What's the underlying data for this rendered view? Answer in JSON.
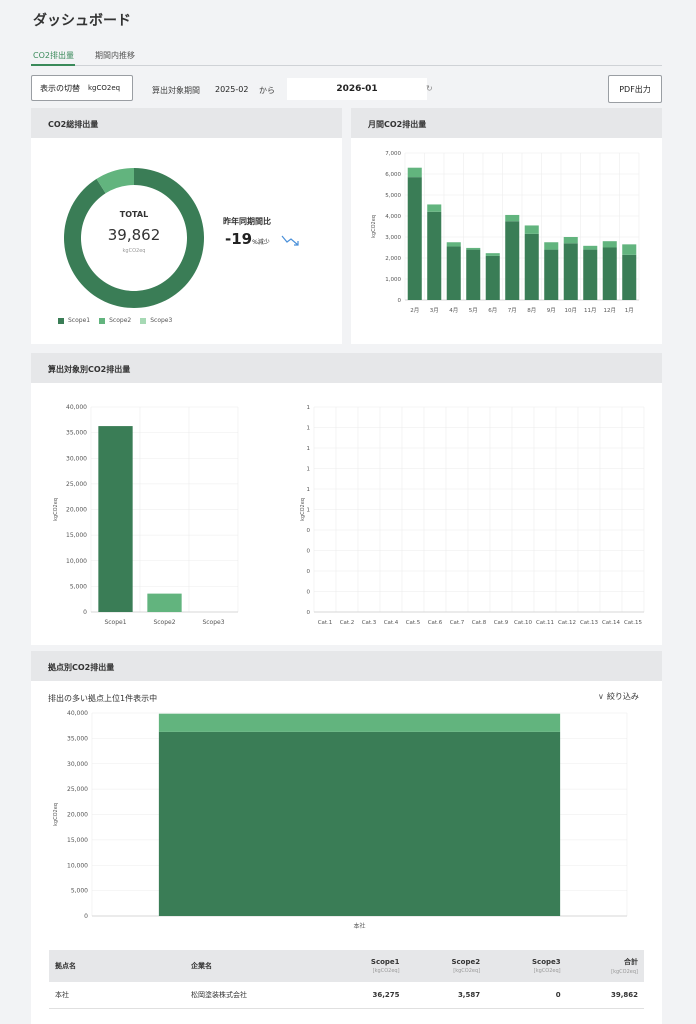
{
  "page_title": "ダッシュボード",
  "tabs": [
    {
      "label": "CO2排出量",
      "active": true
    },
    {
      "label": "期間内推移",
      "active": false
    }
  ],
  "toolbar": {
    "unit_toggle_label": "表示の切替",
    "unit_toggle_value": "kgCO2eq",
    "period_label": "算出対象期間",
    "period_start": "2025-02",
    "period_from": "から",
    "period_end": "2026-01",
    "pdf_label": "PDF出力"
  },
  "total_card": {
    "title": "CO2総排出量",
    "total_label": "TOTAL",
    "total_value": "39,862",
    "total_unit": "kgCO2eq",
    "yoy_label": "昨年同期間比",
    "yoy_value": "-19",
    "yoy_suffix": "%減少",
    "colors": {
      "scope1": "#3a7d56",
      "scope2": "#62b47e",
      "scope3": "#a6d9b4"
    },
    "legend": [
      "Scope1",
      "Scope2",
      "Scope3"
    ]
  },
  "monthly_card": {
    "title": "月間CO2排出量"
  },
  "target_card": {
    "title": "算出対象別CO2排出量"
  },
  "site_card": {
    "title": "拠点別CO2排出量",
    "subtitle": "排出の多い拠点上位1件表示中",
    "filter_label": "絞り込み",
    "table": {
      "headers": [
        {
          "label": "拠点名",
          "unit": ""
        },
        {
          "label": "企業名",
          "unit": ""
        },
        {
          "label": "Scope1",
          "unit": "[kgCO2eq]"
        },
        {
          "label": "Scope2",
          "unit": "[kgCO2eq]"
        },
        {
          "label": "Scope3",
          "unit": "[kgCO2eq]"
        },
        {
          "label": "合計",
          "unit": "[kgCO2eq]"
        }
      ],
      "rows": [
        {
          "site": "本社",
          "company": "松岡塗装株式会社",
          "scope1": "36,275",
          "scope2": "3,587",
          "scope3": "0",
          "total": "39,862"
        }
      ]
    }
  },
  "chart_data": [
    {
      "id": "total-donut",
      "type": "pie",
      "categories": [
        "Scope1",
        "Scope2",
        "Scope3"
      ],
      "values": [
        36275,
        3587,
        0
      ]
    },
    {
      "id": "monthly",
      "type": "bar",
      "stacked": true,
      "categories": [
        "2月",
        "3月",
        "4月",
        "5月",
        "6月",
        "7月",
        "8月",
        "9月",
        "10月",
        "11月",
        "12月",
        "1月"
      ],
      "series": [
        {
          "name": "Scope1",
          "values": [
            5850,
            4200,
            2550,
            2400,
            2100,
            3750,
            3150,
            2400,
            2700,
            2400,
            2500,
            2150
          ]
        },
        {
          "name": "Scope2",
          "values": [
            450,
            350,
            200,
            80,
            130,
            300,
            400,
            350,
            300,
            180,
            300,
            500
          ]
        }
      ],
      "ylabel": "kgCO2eq",
      "ylim": [
        0,
        7000
      ],
      "yticks": [
        "0",
        "1,000",
        "2,000",
        "3,000",
        "4,000",
        "5,000",
        "6,000",
        "7,000"
      ],
      "grid": true
    },
    {
      "id": "scope-bar",
      "type": "bar",
      "categories": [
        "Scope1",
        "Scope2",
        "Scope3"
      ],
      "values": [
        36275,
        3587,
        0
      ],
      "ylabel": "kgCO2eq",
      "ylim": [
        0,
        40000
      ],
      "yticks": [
        "0",
        "5,000",
        "10,000",
        "15,000",
        "20,000",
        "25,000",
        "30,000",
        "35,000",
        "40,000"
      ],
      "grid": true
    },
    {
      "id": "category-bar",
      "type": "bar",
      "categories": [
        "Cat.1",
        "Cat.2",
        "Cat.3",
        "Cat.4",
        "Cat.5",
        "Cat.6",
        "Cat.7",
        "Cat.8",
        "Cat.9",
        "Cat.10",
        "Cat.11",
        "Cat.12",
        "Cat.13",
        "Cat.14",
        "Cat.15"
      ],
      "values": [
        0,
        0,
        0,
        0,
        0,
        0,
        0,
        0,
        0,
        0,
        0,
        0,
        0,
        0,
        0
      ],
      "ylabel": "kgCO2eq",
      "yticks": [
        "0",
        "0",
        "0",
        "0",
        "0",
        "1",
        "1",
        "1",
        "1",
        "1",
        "1"
      ],
      "grid": true
    },
    {
      "id": "site-bar",
      "type": "bar",
      "stacked": true,
      "categories": [
        "本社"
      ],
      "series": [
        {
          "name": "Scope1",
          "values": [
            36275
          ]
        },
        {
          "name": "Scope2",
          "values": [
            3587
          ]
        }
      ],
      "ylabel": "kgCO2eq",
      "ylim": [
        0,
        40000
      ],
      "yticks": [
        "0",
        "5,000",
        "10,000",
        "15,000",
        "20,000",
        "25,000",
        "30,000",
        "35,000",
        "40,000"
      ],
      "grid": true
    }
  ]
}
